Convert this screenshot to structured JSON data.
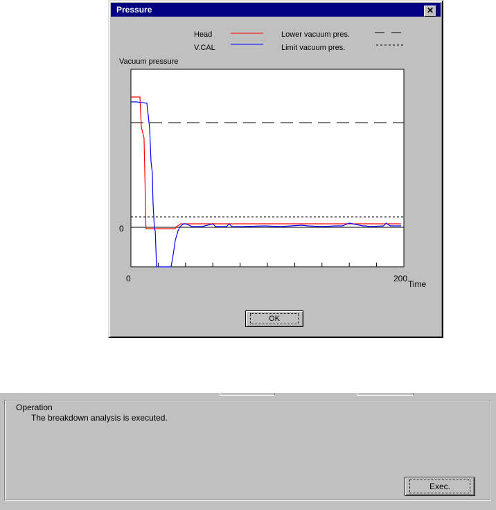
{
  "dialog": {
    "title": "Pressure",
    "close_label": "✕",
    "ok_label": "OK"
  },
  "legend": {
    "head": "Head",
    "vcal": "V.CAL",
    "lower": "Lower vacuum pres.",
    "limit": "Limit vacuum pres."
  },
  "chart_data": {
    "type": "line",
    "ylabel": "Vacuum pressure",
    "xlabel": "Time",
    "xlim": [
      0,
      200
    ],
    "x_ticks": [
      0,
      200
    ],
    "y_ticks": [
      0
    ],
    "colors": {
      "head": "#ff0000",
      "vcal": "#0000ff"
    },
    "reference_lines": [
      {
        "name": "Lower vacuum pres.",
        "style": "dashed",
        "y": 15.1
      },
      {
        "name": "Limit vacuum pres.",
        "style": "dotted",
        "y": 1.5
      }
    ],
    "ylim": [
      -5.7,
      22.8
    ],
    "series": [
      {
        "name": "Head",
        "color": "#ff0000",
        "x": [
          0,
          6.6,
          7.6,
          9.6,
          10,
          11,
          32.5,
          33.5,
          36.5,
          198
        ],
        "y": [
          18.8,
          18.8,
          14.5,
          12.9,
          9.5,
          -0.2,
          -0.2,
          0.1,
          0.5,
          0.5
        ]
      },
      {
        "name": "V.CAL",
        "color": "#0000ff",
        "x": [
          0,
          4,
          11.7,
          12.7,
          13.7,
          14.7,
          15.7,
          16.2,
          17.2,
          17.8,
          18.8,
          29.4,
          31,
          32.5,
          34.5,
          36,
          38.6,
          40,
          45,
          48,
          50,
          52,
          60,
          62,
          64,
          70,
          72,
          74,
          82,
          98,
          110,
          125,
          130,
          140,
          150,
          155,
          160,
          170,
          172,
          175,
          185,
          187,
          190,
          198
        ],
        "y": [
          18.1,
          18.1,
          17.9,
          16.1,
          14.3,
          9.5,
          7.8,
          3.6,
          -0.2,
          -0.5,
          -5.7,
          -5.7,
          -3.9,
          -1.9,
          -0.5,
          0.1,
          0.5,
          0.5,
          0.1,
          0.1,
          0.1,
          0.1,
          0.5,
          0.1,
          0.1,
          0.1,
          0.5,
          0.1,
          0.1,
          0.2,
          0.1,
          0.3,
          0.2,
          0.1,
          0.2,
          0.2,
          0.6,
          0.2,
          0.2,
          0.1,
          0.2,
          0.6,
          0.2,
          0.2
        ]
      }
    ]
  },
  "operation": {
    "group_label": "Operation",
    "message": "The breakdown analysis is executed.",
    "exec_label": "Exec."
  }
}
